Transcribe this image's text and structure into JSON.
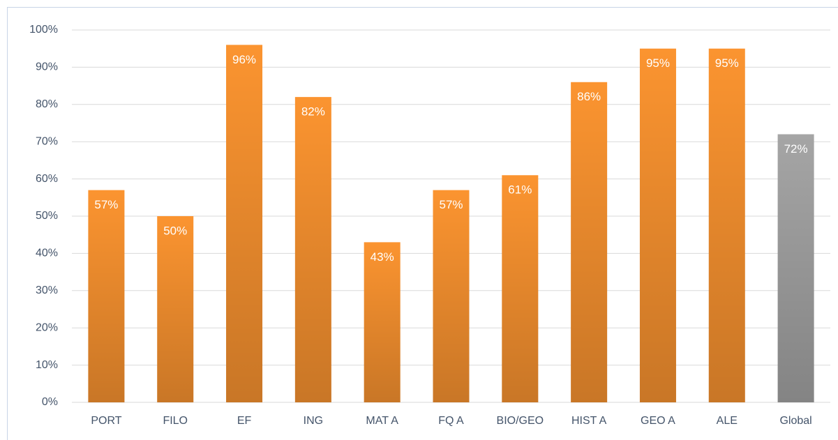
{
  "chart_data": {
    "type": "bar",
    "categories": [
      "PORT",
      "FILO",
      "EF",
      "ING",
      "MAT A",
      "FQ A",
      "BIO/GEO",
      "HIST A",
      "GEO A",
      "ALE",
      "Global"
    ],
    "values": [
      57,
      50,
      96,
      82,
      43,
      57,
      61,
      86,
      95,
      95,
      72
    ],
    "value_labels": [
      "57%",
      "50%",
      "96%",
      "82%",
      "43%",
      "57%",
      "61%",
      "86%",
      "95%",
      "95%",
      "72%"
    ],
    "colors": [
      "#fb9430",
      "#fb9430",
      "#fb9430",
      "#fb9430",
      "#fb9430",
      "#fb9430",
      "#fb9430",
      "#fb9430",
      "#fb9430",
      "#fb9430",
      "#a5a5a5"
    ],
    "ylim": [
      0,
      100
    ],
    "yticks": [
      {
        "value": 0,
        "label": "0%"
      },
      {
        "value": 10,
        "label": "10%"
      },
      {
        "value": 20,
        "label": "20%"
      },
      {
        "value": 30,
        "label": "30%"
      },
      {
        "value": 40,
        "label": "40%"
      },
      {
        "value": 50,
        "label": "50%"
      },
      {
        "value": 60,
        "label": "60%"
      },
      {
        "value": 70,
        "label": "70%"
      },
      {
        "value": 80,
        "label": "80%"
      },
      {
        "value": 90,
        "label": "90%"
      },
      {
        "value": 100,
        "label": "100%"
      }
    ],
    "grid": true
  }
}
